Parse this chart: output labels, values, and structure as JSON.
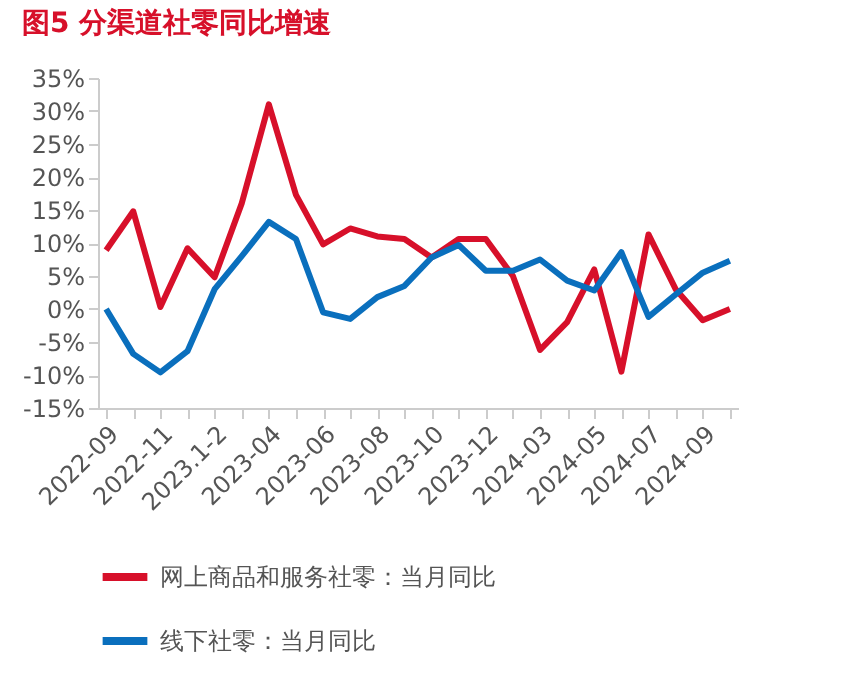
{
  "chart_data": {
    "type": "line",
    "title": "图5  分渠道社零同比增速",
    "categories": [
      "2022-09",
      null,
      "2022-11",
      null,
      "2023.1-2",
      null,
      "2023-04",
      null,
      "2023-06",
      null,
      "2023-08",
      null,
      "2023-10",
      null,
      "2023-12",
      null,
      "2024-03",
      null,
      "2024-05",
      null,
      "2024-07",
      null,
      "2024-09",
      null
    ],
    "series": [
      {
        "name": "网上商品和服务社零：当月同比",
        "color": "#d7102a",
        "values": [
          8.9,
          14.8,
          0.3,
          9.2,
          4.8,
          16.0,
          31.0,
          17.3,
          9.8,
          12.2,
          11.0,
          10.6,
          7.8,
          10.6,
          10.6,
          5.0,
          -6.2,
          -2.0,
          6.0,
          -9.5,
          11.3,
          3.0,
          -1.7,
          0.0
        ]
      },
      {
        "name": "线下社零：当月同比",
        "color": "#0a6fbd",
        "values": [
          0.0,
          -6.8,
          -9.6,
          -6.4,
          3.0,
          8.0,
          13.2,
          10.6,
          -0.5,
          -1.5,
          1.8,
          3.5,
          7.8,
          9.7,
          5.8,
          5.8,
          7.5,
          4.3,
          2.8,
          8.6,
          -1.2,
          2.2,
          5.5,
          7.3
        ]
      }
    ],
    "ylim": [
      -15,
      35
    ],
    "yticks": [
      {
        "value": -15,
        "label": "-15%"
      },
      {
        "value": -10,
        "label": "-10%"
      },
      {
        "value": -5,
        "label": "-5%"
      },
      {
        "value": 0,
        "label": "0%"
      },
      {
        "value": 5,
        "label": "5%"
      },
      {
        "value": 10,
        "label": "10%"
      },
      {
        "value": 15,
        "label": "15%"
      },
      {
        "value": 20,
        "label": "20%"
      },
      {
        "value": 25,
        "label": "25%"
      },
      {
        "value": 30,
        "label": "30%"
      },
      {
        "value": 35,
        "label": "35%"
      }
    ],
    "grid": false,
    "legend": "bottom",
    "marker": "none",
    "line_style": "solid"
  }
}
